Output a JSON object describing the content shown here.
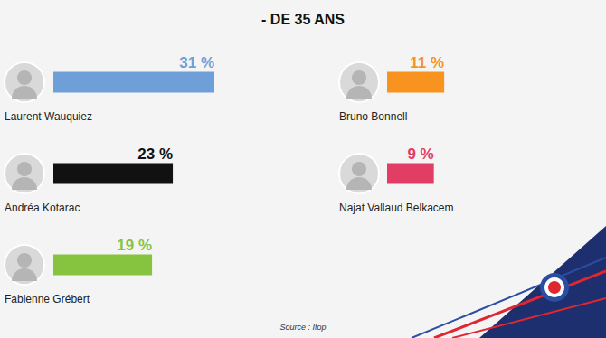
{
  "chart_data": {
    "type": "bar",
    "title": "- DE 35 ANS",
    "source": "Source : Ifop",
    "orientation": "horizontal",
    "categories": [
      "Laurent Wauquiez",
      "Andréa Kotarac",
      "Fabienne Grébert",
      "Bruno Bonnell",
      "Najat Vallaud Belkacem"
    ],
    "values": [
      31,
      23,
      19,
      11,
      9
    ],
    "value_labels": [
      "31 %",
      "23 %",
      "19 %",
      "11 %",
      "9 %"
    ],
    "colors": [
      "#6f9fd8",
      "#111111",
      "#86c43f",
      "#f7931e",
      "#e23d64"
    ],
    "xlim": [
      0,
      31
    ],
    "data_labels": true,
    "tick_labels": false,
    "grid": false
  }
}
